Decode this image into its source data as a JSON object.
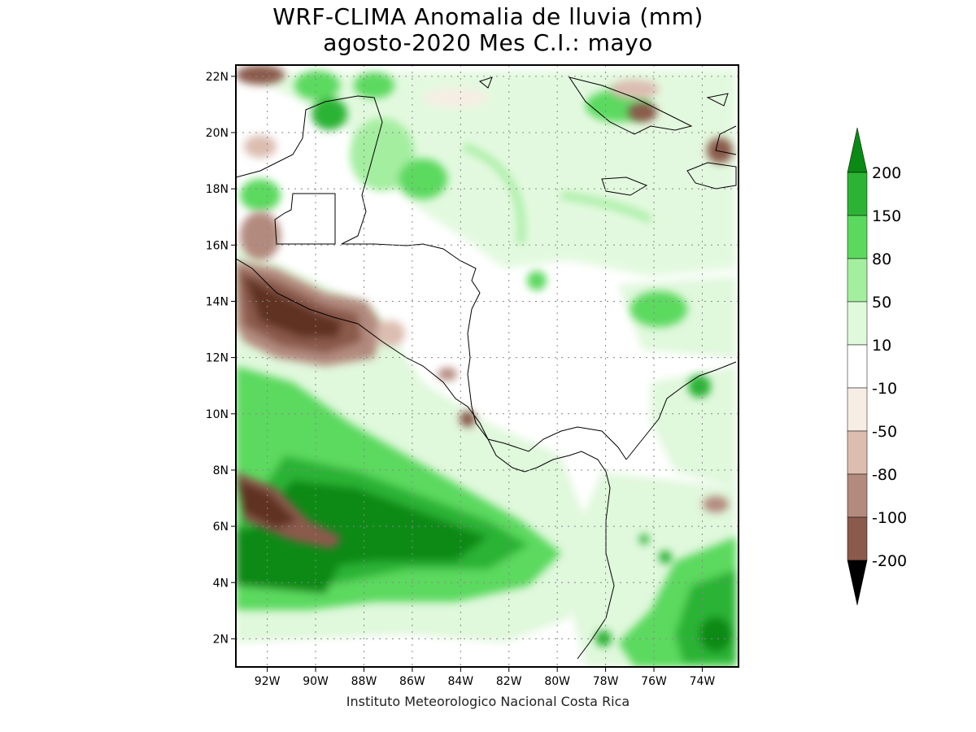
{
  "title_line1": "WRF-CLIMA Anomalia de lluvia (mm)",
  "title_line2": "agosto-2020 Mes C.I.: mayo",
  "credit": "Instituto Meteorologico Nacional Costa Rica",
  "map": {
    "projection": "lat-lon",
    "lon_range": [
      -93.3,
      -72.5
    ],
    "lat_range": [
      1.0,
      22.4
    ],
    "lat_ticks": [
      {
        "value": 22,
        "label": "22N"
      },
      {
        "value": 20,
        "label": "20N"
      },
      {
        "value": 18,
        "label": "18N"
      },
      {
        "value": 16,
        "label": "16N"
      },
      {
        "value": 14,
        "label": "14N"
      },
      {
        "value": 12,
        "label": "12N"
      },
      {
        "value": 10,
        "label": "10N"
      },
      {
        "value": 8,
        "label": "8N"
      },
      {
        "value": 6,
        "label": "6N"
      },
      {
        "value": 4,
        "label": "4N"
      },
      {
        "value": 2,
        "label": "2N"
      }
    ],
    "lon_ticks": [
      {
        "value": -92,
        "label": "92W"
      },
      {
        "value": -90,
        "label": "90W"
      },
      {
        "value": -88,
        "label": "88W"
      },
      {
        "value": -86,
        "label": "86W"
      },
      {
        "value": -84,
        "label": "84W"
      },
      {
        "value": -82,
        "label": "82W"
      },
      {
        "value": -80,
        "label": "80W"
      },
      {
        "value": -78,
        "label": "78W"
      },
      {
        "value": -76,
        "label": "76W"
      },
      {
        "value": -74,
        "label": "74W"
      }
    ],
    "grid": "dotted"
  },
  "colorbar": {
    "labels": [
      "200",
      "150",
      "80",
      "50",
      "10",
      "-10",
      "-50",
      "-80",
      "-100",
      "-200"
    ],
    "colors": {
      "above_200": "#0a8a14",
      "150_200": "#2cb335",
      "80_150": "#5bd95e",
      "50_80": "#a4eea0",
      "10_50": "#e0f8dc",
      "-10_10": "#ffffff",
      "-50_-10": "#f6eee4",
      "-80_-50": "#dcbdb0",
      "-100_-80": "#b38a7e",
      "-200_-100": "#8a5a4c",
      "below_-200": "#5e3024"
    }
  }
}
